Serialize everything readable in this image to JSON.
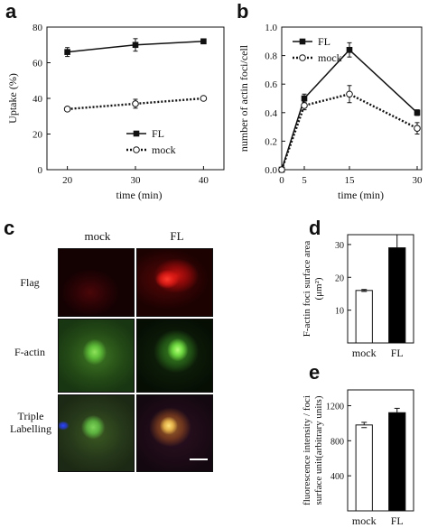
{
  "panels": {
    "a": "a",
    "b": "b",
    "c": "c",
    "d": "d",
    "e": "e"
  },
  "chart_data": [
    {
      "id": "a",
      "type": "line",
      "x": [
        20,
        30,
        40
      ],
      "xlabel": "time   (min)",
      "ylabel": "Uptake (%)",
      "xlim": [
        17,
        43
      ],
      "ylim": [
        0,
        80
      ],
      "xticks": [
        20,
        30,
        40
      ],
      "yticks": [
        0,
        20,
        40,
        60,
        80
      ],
      "grid": false,
      "legend": "bottom-right",
      "series": [
        {
          "name": "FL",
          "values": [
            66,
            70,
            72
          ],
          "errors": [
            2.5,
            3.5,
            1.0
          ],
          "style": "solid",
          "marker": "square-filled",
          "color": "#111111"
        },
        {
          "name": "mock",
          "values": [
            34,
            37,
            40
          ],
          "errors": [
            1.0,
            2.5,
            1.0
          ],
          "style": "dotted",
          "marker": "circle-open",
          "color": "#111111"
        }
      ]
    },
    {
      "id": "b",
      "type": "line",
      "x": [
        0,
        5,
        15,
        30
      ],
      "xlabel": "time (min)",
      "ylabel": "number of actin foci/cell",
      "xlim": [
        0,
        31
      ],
      "ylim": [
        0,
        1.0
      ],
      "xticks": [
        0,
        5,
        15,
        30
      ],
      "yticks": [
        "0.0",
        "0.2",
        "0.4",
        "0.6",
        "0.8",
        "1.0"
      ],
      "grid": false,
      "legend": "top-left",
      "series": [
        {
          "name": "FL",
          "values": [
            0.0,
            0.5,
            0.84,
            0.4
          ],
          "errors": [
            0,
            0.03,
            0.05,
            0.02
          ],
          "style": "solid",
          "marker": "square-filled",
          "color": "#111111"
        },
        {
          "name": "mock",
          "values": [
            0.0,
            0.45,
            0.53,
            0.29
          ],
          "errors": [
            0,
            0.03,
            0.06,
            0.04
          ],
          "style": "dotted",
          "marker": "circle-open",
          "color": "#111111"
        }
      ]
    },
    {
      "id": "d",
      "type": "bar",
      "categories": [
        "mock",
        "FL"
      ],
      "values": [
        16,
        29
      ],
      "errors": [
        0.3,
        4
      ],
      "colors": [
        "#ffffff",
        "#000000"
      ],
      "ylabel": "F-actin foci surface area (μm²)",
      "ylim": [
        0,
        33
      ],
      "yticks": [
        10,
        20,
        30
      ]
    },
    {
      "id": "e",
      "type": "bar",
      "categories": [
        "mock",
        "FL"
      ],
      "values": [
        980,
        1120
      ],
      "errors": [
        30,
        50
      ],
      "colors": [
        "#ffffff",
        "#000000"
      ],
      "ylabel": "fluorescence intensity / foci surface unit(arbitrary units)",
      "ylim": [
        0,
        1380
      ],
      "yticks": [
        400,
        800,
        1200
      ]
    }
  ],
  "micrographs": {
    "columns": [
      "mock",
      "FL"
    ],
    "rows": [
      "Flag",
      "F-actin",
      "Triple Labelling"
    ]
  }
}
